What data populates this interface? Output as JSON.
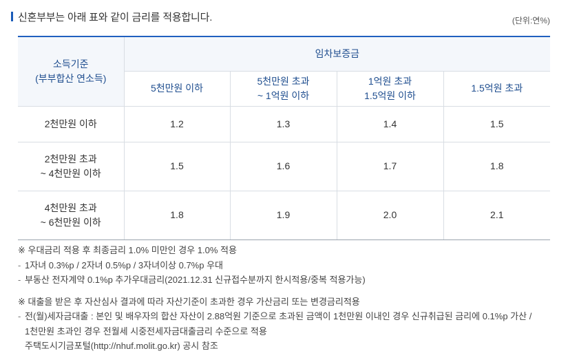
{
  "header": {
    "title": "신혼부부는 아래 표와 같이 금리를 적용합니다.",
    "unit": "(단위:연%)"
  },
  "table": {
    "row_header": [
      "소득기준",
      "(부부합산 연소득)"
    ],
    "group_header": "임차보증금",
    "columns": [
      [
        "5천만원 이하"
      ],
      [
        "5천만원 초과",
        "~ 1억원 이하"
      ],
      [
        "1억원 초과",
        "1.5억원 이하"
      ],
      [
        "1.5억원 초과"
      ]
    ],
    "rows": [
      {
        "label": [
          "2천만원 이하"
        ],
        "values": [
          "1.2",
          "1.3",
          "1.4",
          "1.5"
        ]
      },
      {
        "label": [
          "2천만원 초과",
          "~ 4천만원 이하"
        ],
        "values": [
          "1.5",
          "1.6",
          "1.7",
          "1.8"
        ]
      },
      {
        "label": [
          "4천만원 초과",
          "~ 6천만원 이하"
        ],
        "values": [
          "1.8",
          "1.9",
          "2.0",
          "2.1"
        ]
      }
    ]
  },
  "notes": {
    "note1": "※ 우대금리 적용 후 최종금리 1.0% 미만인 경우 1.0% 적용",
    "note1_items": [
      "1자녀 0.3%p / 2자녀 0.5%p / 3자녀이상 0.7%p 우대",
      "부동산 전자계약 0.1%p 추가우대금리(2021.12.31 신규접수분까지 한시적용/중복 적용가능)"
    ],
    "note2": "※ 대출을 받은 후 자산심사 결과에 따라 자산기준이 초과한 경우 가산금리 또는 변경금리적용",
    "note2_items": [
      "전(월)세자금대출 : 본인 및 배우자의 합산 자산이 2.88억원 기준으로 초과된 금액이 1천만원 이내인 경우 신규취급된 금리에 0.1%p 가산 /",
      "1천만원 초과인 경우 전월세 시중전세자금대출금리 수준으로 적용",
      "주택도시기금포털(http://nhuf.molit.go.kr) 공시 참조"
    ]
  }
}
